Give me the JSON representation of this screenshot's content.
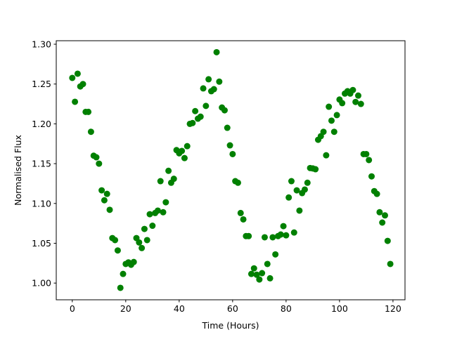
{
  "chart_data": {
    "type": "scatter",
    "xlabel": "Time (Hours)",
    "ylabel": "Normalised Flux",
    "color": "#008000",
    "x": [
      0,
      1,
      2,
      3,
      4,
      5,
      6,
      7,
      8,
      9,
      10,
      11,
      12,
      13,
      14,
      15,
      16,
      17,
      18,
      19,
      20,
      21,
      22,
      23,
      24,
      25,
      26,
      27,
      28,
      29,
      30,
      31,
      32,
      33,
      34,
      35,
      36,
      37,
      38,
      39,
      40,
      41,
      42,
      43,
      44,
      45,
      46,
      47,
      48,
      49,
      50,
      51,
      52,
      53,
      54,
      55,
      56,
      57,
      58,
      59,
      60,
      61,
      62,
      63,
      64,
      65,
      66,
      67,
      68,
      69,
      70,
      71,
      72,
      73,
      74,
      75,
      76,
      77,
      78,
      79,
      80,
      81,
      82,
      83,
      84,
      85,
      86,
      87,
      88,
      89,
      90,
      91,
      92,
      93,
      94,
      95,
      96,
      97,
      98,
      99,
      100,
      101,
      102,
      103,
      104,
      105,
      106,
      107,
      108,
      109,
      110,
      111,
      112,
      113,
      114,
      115,
      116,
      117,
      118,
      119
    ],
    "values": [
      1.2577,
      1.2277,
      1.263,
      1.247,
      1.25,
      1.215,
      1.215,
      1.19,
      1.16,
      1.158,
      1.15,
      1.1165,
      1.104,
      1.112,
      1.092,
      1.0565,
      1.054,
      1.041,
      0.994,
      1.0115,
      1.024,
      1.026,
      1.023,
      1.0265,
      1.0565,
      1.051,
      1.044,
      1.068,
      1.054,
      1.0865,
      1.072,
      1.088,
      1.091,
      1.128,
      1.089,
      1.1015,
      1.141,
      1.126,
      1.131,
      1.167,
      1.163,
      1.166,
      1.157,
      1.172,
      1.2,
      1.201,
      1.216,
      1.2065,
      1.209,
      1.2445,
      1.2225,
      1.256,
      1.241,
      1.2435,
      1.29,
      1.253,
      1.2205,
      1.217,
      1.195,
      1.173,
      1.162,
      1.128,
      1.126,
      1.088,
      1.08,
      1.059,
      1.059,
      1.0115,
      1.0185,
      1.0105,
      1.0045,
      1.0125,
      1.0575,
      1.024,
      1.006,
      1.0575,
      1.036,
      1.059,
      1.061,
      1.0715,
      1.06,
      1.1075,
      1.128,
      1.0635,
      1.1165,
      1.091,
      1.113,
      1.1175,
      1.126,
      1.1445,
      1.144,
      1.143,
      1.18,
      1.1845,
      1.19,
      1.1605,
      1.2215,
      1.204,
      1.19,
      1.211,
      1.2305,
      1.226,
      1.238,
      1.241,
      1.238,
      1.2425,
      1.2275,
      1.2355,
      1.225,
      1.162,
      1.162,
      1.1545,
      1.134,
      1.1155,
      1.112,
      1.089,
      1.076,
      1.085,
      1.053,
      1.024
    ],
    "xlim": [
      -6,
      124.5
    ],
    "ylim": [
      0.979,
      1.3044
    ],
    "xticks": [
      0,
      20,
      40,
      60,
      80,
      100,
      120
    ],
    "yticks": [
      {
        "value": 1.0,
        "label": "1.00"
      },
      {
        "value": 1.05,
        "label": "1.05"
      },
      {
        "value": 1.1,
        "label": "1.10"
      },
      {
        "value": 1.15,
        "label": "1.15"
      },
      {
        "value": 1.2,
        "label": "1.20"
      },
      {
        "value": 1.25,
        "label": "1.25"
      },
      {
        "value": 1.3,
        "label": "1.30"
      }
    ]
  }
}
